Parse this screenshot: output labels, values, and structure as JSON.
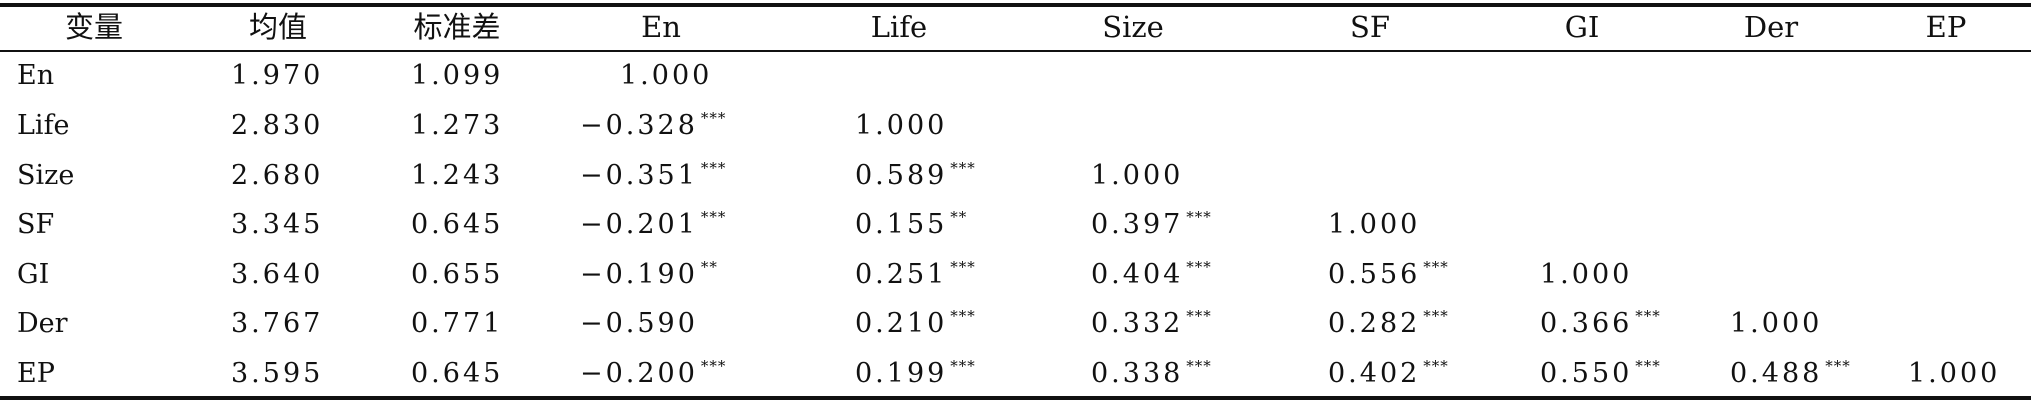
{
  "table": {
    "headers": [
      "变量",
      "均值",
      "标准差",
      "En",
      "Life",
      "Size",
      "SF",
      "GI",
      "Der",
      "EP"
    ],
    "rows": [
      {
        "var": "En",
        "mean": "1.970",
        "sd": "1.099",
        "cells": [
          {
            "v": "1.000",
            "s": ""
          }
        ]
      },
      {
        "var": "Life",
        "mean": "2.830",
        "sd": "1.273",
        "cells": [
          {
            "v": "−0.328",
            "s": "***"
          },
          {
            "v": "1.000",
            "s": ""
          }
        ]
      },
      {
        "var": "Size",
        "mean": "2.680",
        "sd": "1.243",
        "cells": [
          {
            "v": "−0.351",
            "s": "***"
          },
          {
            "v": "0.589",
            "s": "***"
          },
          {
            "v": "1.000",
            "s": ""
          }
        ]
      },
      {
        "var": "SF",
        "mean": "3.345",
        "sd": "0.645",
        "cells": [
          {
            "v": "−0.201",
            "s": "***"
          },
          {
            "v": "0.155",
            "s": "**"
          },
          {
            "v": "0.397",
            "s": "***"
          },
          {
            "v": "1.000",
            "s": ""
          }
        ]
      },
      {
        "var": "GI",
        "mean": "3.640",
        "sd": "0.655",
        "cells": [
          {
            "v": "−0.190",
            "s": "**"
          },
          {
            "v": "0.251",
            "s": "***"
          },
          {
            "v": "0.404",
            "s": "***"
          },
          {
            "v": "0.556",
            "s": "***"
          },
          {
            "v": "1.000",
            "s": ""
          }
        ]
      },
      {
        "var": "Der",
        "mean": "3.767",
        "sd": "0.771",
        "cells": [
          {
            "v": "−0.590",
            "s": ""
          },
          {
            "v": "0.210",
            "s": "***"
          },
          {
            "v": "0.332",
            "s": "***"
          },
          {
            "v": "0.282",
            "s": "***"
          },
          {
            "v": "0.366",
            "s": "***"
          },
          {
            "v": "1.000",
            "s": ""
          }
        ]
      },
      {
        "var": "EP",
        "mean": "3.595",
        "sd": "0.645",
        "cells": [
          {
            "v": "−0.200",
            "s": "***"
          },
          {
            "v": "0.199",
            "s": "***"
          },
          {
            "v": "0.338",
            "s": "***"
          },
          {
            "v": "0.402",
            "s": "***"
          },
          {
            "v": "0.550",
            "s": "***"
          },
          {
            "v": "0.488",
            "s": "***"
          },
          {
            "v": "1.000",
            "s": ""
          }
        ]
      }
    ]
  }
}
